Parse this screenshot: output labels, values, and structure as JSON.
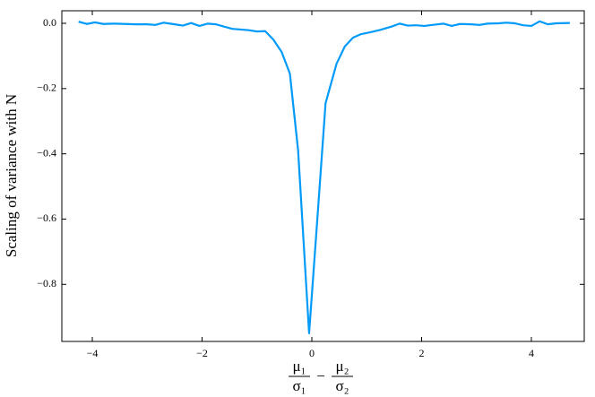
{
  "chart_data": {
    "type": "line",
    "y_label": "Scaling of variance with N",
    "x_label": {
      "first": {
        "numerator": "μ₁",
        "denominator": "σ₁"
      },
      "operator": "−",
      "second": {
        "numerator": "μ₂",
        "denominator": "σ₂"
      }
    },
    "x": [
      -4.25,
      -4.1,
      -3.95,
      -3.8,
      -3.6,
      -3.4,
      -3.2,
      -3.0,
      -2.85,
      -2.7,
      -2.5,
      -2.35,
      -2.2,
      -2.05,
      -1.9,
      -1.75,
      -1.6,
      -1.45,
      -1.3,
      -1.15,
      -1.0,
      -0.85,
      -0.7,
      -0.55,
      -0.4,
      -0.25,
      -0.05,
      0.1,
      0.25,
      0.45,
      0.6,
      0.75,
      0.9,
      1.05,
      1.25,
      1.45,
      1.6,
      1.75,
      1.9,
      2.05,
      2.2,
      2.4,
      2.55,
      2.7,
      2.9,
      3.05,
      3.2,
      3.4,
      3.55,
      3.7,
      3.85,
      4.0,
      4.15,
      4.3,
      4.45,
      4.7
    ],
    "series": [
      {
        "color": "#009af9",
        "values": [
          0.005,
          -0.002,
          0.003,
          -0.002,
          -0.001,
          -0.002,
          -0.003,
          -0.003,
          -0.005,
          0.002,
          -0.003,
          -0.007,
          0.001,
          -0.008,
          -0.001,
          -0.003,
          -0.01,
          -0.017,
          -0.019,
          -0.021,
          -0.025,
          -0.024,
          -0.05,
          -0.088,
          -0.154,
          -0.39,
          -0.95,
          -0.6,
          -0.245,
          -0.124,
          -0.071,
          -0.044,
          -0.033,
          -0.028,
          -0.02,
          -0.01,
          -0.001,
          -0.007,
          -0.006,
          -0.008,
          -0.005,
          -0.001,
          -0.008,
          -0.002,
          -0.003,
          -0.005,
          -0.001,
          0.0,
          0.002,
          0.0,
          -0.006,
          -0.008,
          0.006,
          -0.003,
          0.0,
          0.001
        ]
      }
    ],
    "xlim": [
      -4.555,
      4.963
    ],
    "ylim": [
      -0.975,
      0.0385
    ],
    "xticks": [
      {
        "value": -4,
        "label": "−4"
      },
      {
        "value": -2,
        "label": "−2"
      },
      0,
      2,
      4
    ],
    "yticks": [
      {
        "value": 0,
        "label": "0.0"
      },
      {
        "value": -0.2,
        "label": "−0.2"
      },
      {
        "value": -0.4,
        "label": "−0.4"
      },
      {
        "value": -0.6,
        "label": "−0.6"
      },
      {
        "value": -0.8,
        "label": "−0.8"
      }
    ],
    "grid": false
  }
}
